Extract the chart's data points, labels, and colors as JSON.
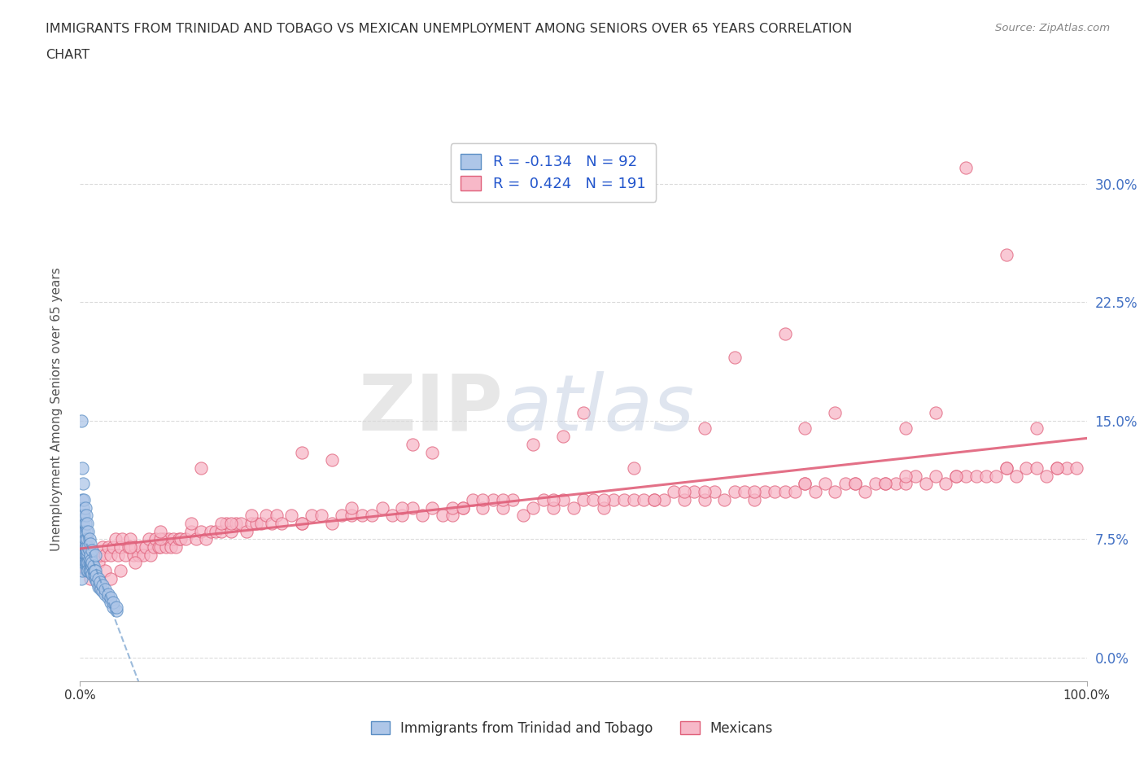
{
  "title_line1": "IMMIGRANTS FROM TRINIDAD AND TOBAGO VS MEXICAN UNEMPLOYMENT AMONG SENIORS OVER 65 YEARS CORRELATION",
  "title_line2": "CHART",
  "source": "Source: ZipAtlas.com",
  "ylabel": "Unemployment Among Seniors over 65 years",
  "r_blue": -0.134,
  "n_blue": 92,
  "r_pink": 0.424,
  "n_pink": 191,
  "blue_fill": "#aec6e8",
  "blue_edge": "#5b8ec4",
  "pink_fill": "#f7b8c8",
  "pink_edge": "#e0607a",
  "blue_line_color": "#5b8ec4",
  "pink_line_color": "#e0607a",
  "background_color": "#ffffff",
  "grid_color": "#cccccc",
  "xlim": [
    0.0,
    1.0
  ],
  "ylim": [
    -0.015,
    0.33
  ],
  "x_ticks": [
    0.0,
    1.0
  ],
  "x_tick_labels": [
    "0.0%",
    "100.0%"
  ],
  "y_ticks": [
    0.0,
    0.075,
    0.15,
    0.225,
    0.3
  ],
  "y_tick_labels": [
    "0.0%",
    "7.5%",
    "15.0%",
    "22.5%",
    "30.0%"
  ],
  "watermark_zip": "ZIP",
  "watermark_atlas": "atlas",
  "legend_label_blue": "Immigrants from Trinidad and Tobago",
  "legend_label_pink": "Mexicans",
  "blue_scatter_x": [
    0.001,
    0.001,
    0.002,
    0.002,
    0.002,
    0.002,
    0.003,
    0.003,
    0.003,
    0.003,
    0.004,
    0.004,
    0.004,
    0.004,
    0.005,
    0.005,
    0.005,
    0.005,
    0.006,
    0.006,
    0.006,
    0.007,
    0.007,
    0.007,
    0.008,
    0.008,
    0.008,
    0.009,
    0.009,
    0.01,
    0.01,
    0.01,
    0.011,
    0.011,
    0.012,
    0.012,
    0.013,
    0.014,
    0.015,
    0.016,
    0.017,
    0.018,
    0.02,
    0.021,
    0.022,
    0.025,
    0.028,
    0.03,
    0.033,
    0.036,
    0.002,
    0.002,
    0.003,
    0.003,
    0.004,
    0.004,
    0.005,
    0.005,
    0.006,
    0.006,
    0.007,
    0.007,
    0.008,
    0.009,
    0.009,
    0.01,
    0.011,
    0.012,
    0.013,
    0.014,
    0.015,
    0.016,
    0.018,
    0.02,
    0.022,
    0.025,
    0.028,
    0.03,
    0.033,
    0.036,
    0.001,
    0.002,
    0.003,
    0.004,
    0.005,
    0.006,
    0.007,
    0.008,
    0.009,
    0.01,
    0.012,
    0.015
  ],
  "blue_scatter_y": [
    0.06,
    0.05,
    0.08,
    0.07,
    0.06,
    0.055,
    0.09,
    0.08,
    0.07,
    0.065,
    0.08,
    0.07,
    0.065,
    0.06,
    0.075,
    0.07,
    0.065,
    0.06,
    0.07,
    0.065,
    0.06,
    0.065,
    0.06,
    0.055,
    0.065,
    0.06,
    0.055,
    0.06,
    0.055,
    0.065,
    0.06,
    0.055,
    0.06,
    0.055,
    0.058,
    0.053,
    0.055,
    0.052,
    0.05,
    0.05,
    0.048,
    0.045,
    0.045,
    0.043,
    0.042,
    0.04,
    0.038,
    0.035,
    0.032,
    0.03,
    0.1,
    0.09,
    0.095,
    0.085,
    0.09,
    0.08,
    0.085,
    0.075,
    0.08,
    0.07,
    0.075,
    0.068,
    0.07,
    0.068,
    0.063,
    0.065,
    0.062,
    0.06,
    0.058,
    0.055,
    0.055,
    0.052,
    0.05,
    0.048,
    0.046,
    0.043,
    0.04,
    0.038,
    0.035,
    0.032,
    0.15,
    0.12,
    0.11,
    0.1,
    0.095,
    0.09,
    0.085,
    0.08,
    0.075,
    0.072,
    0.068,
    0.065
  ],
  "pink_scatter_x": [
    0.005,
    0.008,
    0.01,
    0.012,
    0.015,
    0.018,
    0.02,
    0.022,
    0.025,
    0.028,
    0.03,
    0.033,
    0.035,
    0.038,
    0.04,
    0.042,
    0.045,
    0.048,
    0.05,
    0.053,
    0.055,
    0.058,
    0.06,
    0.063,
    0.065,
    0.068,
    0.07,
    0.073,
    0.075,
    0.078,
    0.08,
    0.083,
    0.085,
    0.088,
    0.09,
    0.093,
    0.095,
    0.098,
    0.1,
    0.105,
    0.11,
    0.115,
    0.12,
    0.125,
    0.13,
    0.135,
    0.14,
    0.145,
    0.15,
    0.155,
    0.16,
    0.165,
    0.17,
    0.175,
    0.18,
    0.185,
    0.19,
    0.195,
    0.2,
    0.21,
    0.22,
    0.23,
    0.24,
    0.25,
    0.26,
    0.27,
    0.28,
    0.29,
    0.3,
    0.31,
    0.32,
    0.33,
    0.34,
    0.35,
    0.36,
    0.37,
    0.38,
    0.39,
    0.4,
    0.41,
    0.42,
    0.43,
    0.44,
    0.45,
    0.46,
    0.47,
    0.48,
    0.49,
    0.5,
    0.51,
    0.52,
    0.53,
    0.54,
    0.55,
    0.56,
    0.57,
    0.58,
    0.59,
    0.6,
    0.61,
    0.62,
    0.63,
    0.64,
    0.65,
    0.66,
    0.67,
    0.68,
    0.69,
    0.7,
    0.71,
    0.72,
    0.73,
    0.74,
    0.75,
    0.76,
    0.77,
    0.78,
    0.79,
    0.8,
    0.81,
    0.82,
    0.83,
    0.84,
    0.85,
    0.86,
    0.87,
    0.88,
    0.89,
    0.9,
    0.91,
    0.92,
    0.93,
    0.94,
    0.95,
    0.96,
    0.97,
    0.98,
    0.99,
    0.025,
    0.05,
    0.08,
    0.11,
    0.14,
    0.17,
    0.22,
    0.27,
    0.32,
    0.37,
    0.42,
    0.47,
    0.52,
    0.57,
    0.62,
    0.67,
    0.72,
    0.77,
    0.82,
    0.87,
    0.92,
    0.97,
    0.38,
    0.15,
    0.55,
    0.88,
    0.92,
    0.65,
    0.75,
    0.85,
    0.48,
    0.33,
    0.22,
    0.12,
    0.08,
    0.055,
    0.04,
    0.03,
    0.02,
    0.01,
    0.25,
    0.35,
    0.45,
    0.62,
    0.72,
    0.82,
    0.95,
    0.4,
    0.6,
    0.8,
    0.5,
    0.7
  ],
  "pink_scatter_y": [
    0.055,
    0.06,
    0.065,
    0.06,
    0.065,
    0.06,
    0.065,
    0.07,
    0.065,
    0.07,
    0.065,
    0.07,
    0.075,
    0.065,
    0.07,
    0.075,
    0.065,
    0.07,
    0.075,
    0.065,
    0.07,
    0.065,
    0.07,
    0.065,
    0.07,
    0.075,
    0.065,
    0.07,
    0.075,
    0.07,
    0.07,
    0.075,
    0.07,
    0.075,
    0.07,
    0.075,
    0.07,
    0.075,
    0.075,
    0.075,
    0.08,
    0.075,
    0.08,
    0.075,
    0.08,
    0.08,
    0.08,
    0.085,
    0.08,
    0.085,
    0.085,
    0.08,
    0.085,
    0.085,
    0.085,
    0.09,
    0.085,
    0.09,
    0.085,
    0.09,
    0.085,
    0.09,
    0.09,
    0.085,
    0.09,
    0.09,
    0.09,
    0.09,
    0.095,
    0.09,
    0.09,
    0.095,
    0.09,
    0.095,
    0.09,
    0.09,
    0.095,
    0.1,
    0.095,
    0.1,
    0.095,
    0.1,
    0.09,
    0.095,
    0.1,
    0.095,
    0.1,
    0.095,
    0.1,
    0.1,
    0.095,
    0.1,
    0.1,
    0.1,
    0.1,
    0.1,
    0.1,
    0.105,
    0.1,
    0.105,
    0.1,
    0.105,
    0.1,
    0.105,
    0.105,
    0.1,
    0.105,
    0.105,
    0.105,
    0.105,
    0.11,
    0.105,
    0.11,
    0.105,
    0.11,
    0.11,
    0.105,
    0.11,
    0.11,
    0.11,
    0.11,
    0.115,
    0.11,
    0.115,
    0.11,
    0.115,
    0.115,
    0.115,
    0.115,
    0.115,
    0.12,
    0.115,
    0.12,
    0.12,
    0.115,
    0.12,
    0.12,
    0.12,
    0.055,
    0.07,
    0.075,
    0.085,
    0.085,
    0.09,
    0.085,
    0.095,
    0.095,
    0.095,
    0.1,
    0.1,
    0.1,
    0.1,
    0.105,
    0.105,
    0.11,
    0.11,
    0.115,
    0.115,
    0.12,
    0.12,
    0.095,
    0.085,
    0.12,
    0.31,
    0.255,
    0.19,
    0.155,
    0.155,
    0.14,
    0.135,
    0.13,
    0.12,
    0.08,
    0.06,
    0.055,
    0.05,
    0.045,
    0.05,
    0.125,
    0.13,
    0.135,
    0.145,
    0.145,
    0.145,
    0.145,
    0.1,
    0.105,
    0.11,
    0.155,
    0.205
  ]
}
